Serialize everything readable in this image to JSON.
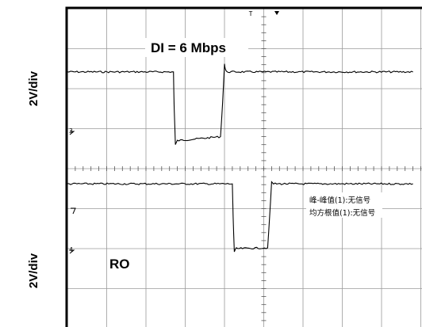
{
  "chart_data": {
    "type": "line",
    "title": "",
    "xlabel": "",
    "ylabel": "2V/div",
    "grid": true,
    "x_divisions": 10,
    "y_divisions": 8,
    "channels": [
      {
        "name": "DI = 6 Mbps",
        "scale_label": "2V/div",
        "ground_marker": "3",
        "x": [
          0,
          2.7,
          2.72,
          2.75,
          2.8,
          3.9,
          3.95,
          4.0,
          4.02,
          4.05,
          8.8
        ],
        "y": [
          1.42,
          1.42,
          0.5,
          -0.4,
          -0.3,
          -0.2,
          0.6,
          1.62,
          1.5,
          1.42,
          1.42
        ]
      },
      {
        "name": "RO",
        "scale_label": "2V/div",
        "ground_marker": "4",
        "x": [
          0,
          4.2,
          4.22,
          4.25,
          4.3,
          5.1,
          5.15,
          5.2,
          5.25,
          8.8
        ],
        "y": [
          1.62,
          1.62,
          0.8,
          -0.08,
          0.0,
          0.02,
          0.8,
          1.65,
          1.62,
          1.62
        ]
      }
    ],
    "measurements": [
      "峰-峰值(1):无信号",
      "均方根值(1):无信号"
    ]
  }
}
